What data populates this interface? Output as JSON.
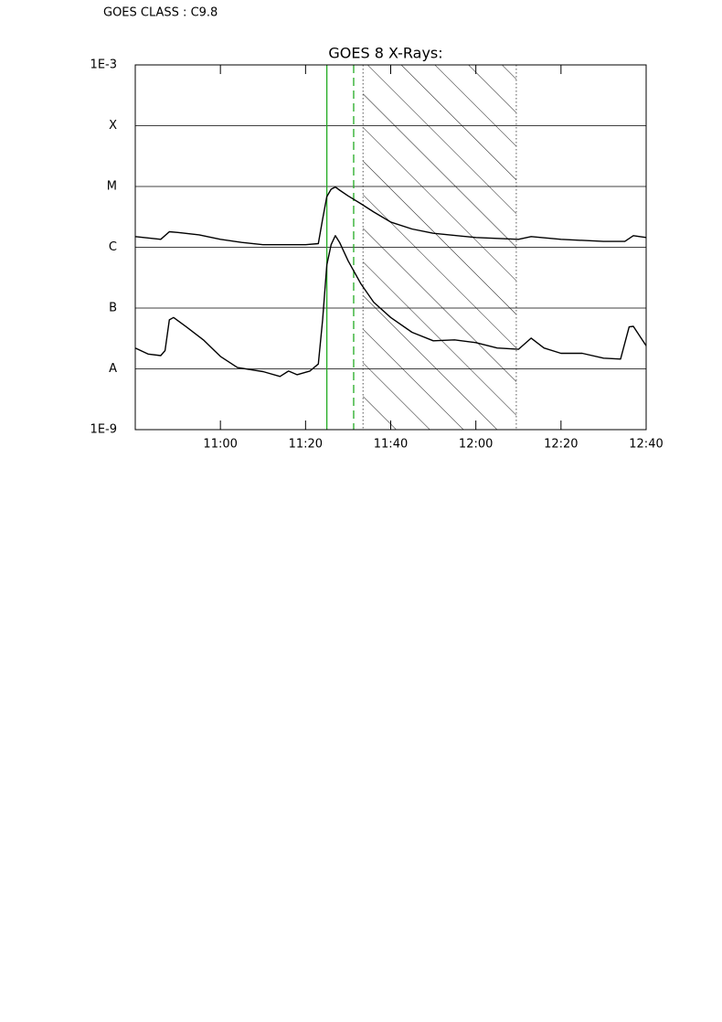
{
  "header": {
    "text": "GOES CLASS : C9.8"
  },
  "chart_data": {
    "type": "line",
    "title": "GOES 8 X-Rays:",
    "log_y": true,
    "grid": true,
    "xlim": [
      640,
      760
    ],
    "xticks": [
      {
        "value": 660,
        "label": "11:00"
      },
      {
        "value": 680,
        "label": "11:20"
      },
      {
        "value": 700,
        "label": "11:40"
      },
      {
        "value": 720,
        "label": "12:00"
      },
      {
        "value": 740,
        "label": "12:20"
      },
      {
        "value": 760,
        "label": "12:40"
      }
    ],
    "ylim": [
      1e-09,
      0.001
    ],
    "yticks": [
      {
        "value": 1e-09,
        "label": "1E-9"
      },
      {
        "value": 1e-08,
        "label": "A"
      },
      {
        "value": 1e-07,
        "label": "B"
      },
      {
        "value": 1e-06,
        "label": "C"
      },
      {
        "value": 1e-05,
        "label": "M"
      },
      {
        "value": 0.0001,
        "label": "X"
      },
      {
        "value": 0.001,
        "label": "1E-3"
      }
    ],
    "series": [
      {
        "color": "#000000",
        "x": [
          640,
          646,
          648,
          650,
          655,
          660,
          665,
          670,
          680,
          683,
          684,
          685,
          686,
          687,
          688,
          690,
          693,
          696,
          700,
          705,
          710,
          720,
          730,
          733,
          740,
          750,
          755,
          757,
          760
        ],
        "values": [
          1.5e-06,
          1.35e-06,
          1.8e-06,
          1.75e-06,
          1.6e-06,
          1.35e-06,
          1.2e-06,
          1.1e-06,
          1.1e-06,
          1.15e-06,
          2.9e-06,
          6.8e-06,
          9e-06,
          9.8e-06,
          8.7e-06,
          7e-06,
          5.2e-06,
          3.8e-06,
          2.6e-06,
          2e-06,
          1.7e-06,
          1.45e-06,
          1.35e-06,
          1.5e-06,
          1.35e-06,
          1.25e-06,
          1.25e-06,
          1.55e-06,
          1.45e-06
        ]
      },
      {
        "color": "#000000",
        "x": [
          640,
          643,
          646,
          647,
          648,
          649,
          652,
          656,
          660,
          664,
          670,
          674,
          676,
          678,
          681,
          683,
          684,
          685,
          686,
          687,
          688,
          690,
          693,
          696,
          700,
          705,
          710,
          715,
          720,
          725,
          730,
          733,
          736,
          740,
          745,
          750,
          754,
          756,
          757,
          760
        ],
        "values": [
          2.2e-08,
          1.75e-08,
          1.65e-08,
          2e-08,
          6.4e-08,
          7e-08,
          4.9e-08,
          3e-08,
          1.6e-08,
          1.05e-08,
          9e-09,
          7.5e-09,
          9.2e-09,
          8e-09,
          9.2e-09,
          1.2e-08,
          6.4e-08,
          5.1e-07,
          1.1e-06,
          1.55e-06,
          1.2e-06,
          6e-07,
          2.5e-07,
          1.25e-07,
          7e-08,
          4e-08,
          2.9e-08,
          3e-08,
          2.7e-08,
          2.2e-08,
          2.1e-08,
          3.2e-08,
          2.2e-08,
          1.8e-08,
          1.8e-08,
          1.5e-08,
          1.45e-08,
          4.9e-08,
          5e-08,
          2.4e-08
        ]
      }
    ],
    "markers": [
      {
        "x": 685,
        "color": "#22aa22",
        "dash": false
      },
      {
        "x": 691.3,
        "color": "#22aa22",
        "dash": true
      }
    ],
    "shaded_region": [
      693.5,
      729.5
    ]
  }
}
